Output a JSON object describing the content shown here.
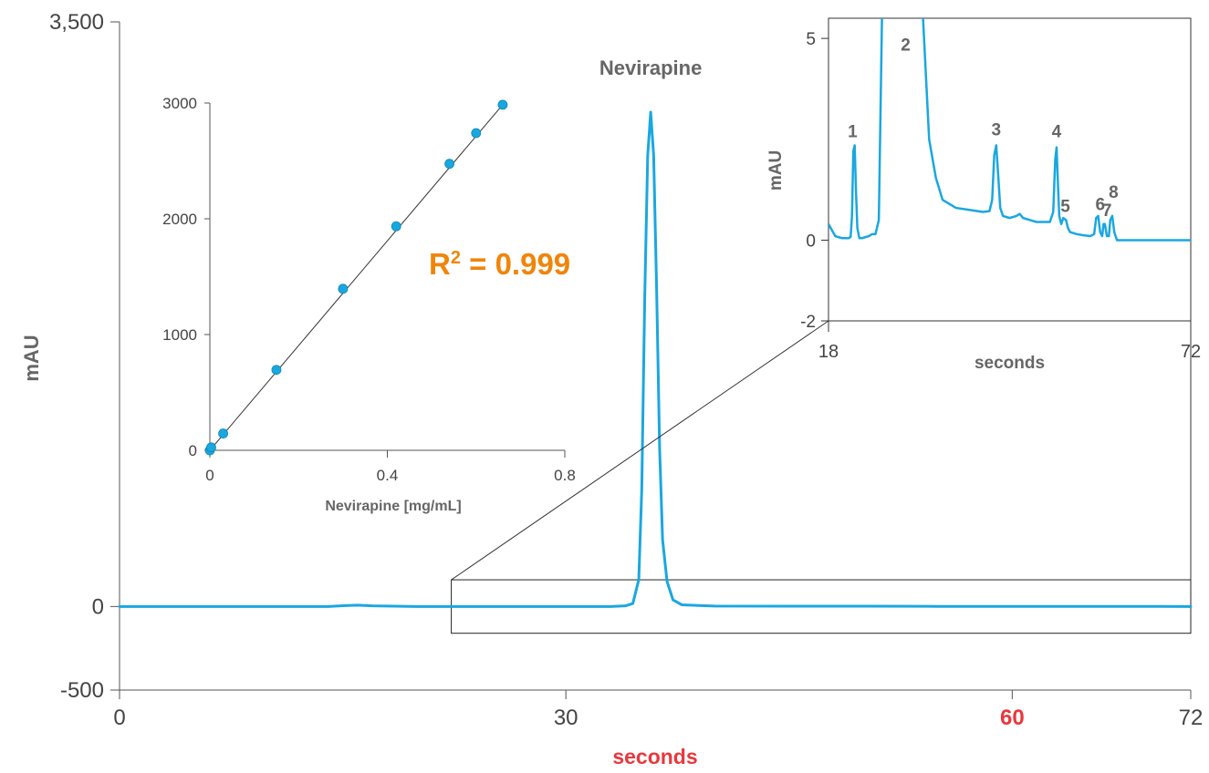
{
  "colors": {
    "trace": "#1aa7e0",
    "axis": "#555555",
    "accent_red": "#e8383d",
    "accent_orange": "#f0850a",
    "fit_line": "#333333",
    "label_gray": "#666666"
  },
  "chart_data": [
    {
      "type": "line",
      "id": "main",
      "xlabel": "seconds",
      "ylabel": "mAU",
      "xlim": [
        0,
        72
      ],
      "ylim": [
        -500,
        3500
      ],
      "xticks": [
        {
          "value": 0,
          "label": "0",
          "highlight": false
        },
        {
          "value": 30,
          "label": "30",
          "highlight": false
        },
        {
          "value": 60,
          "label": "60",
          "highlight": true
        },
        {
          "value": 72,
          "label": "72",
          "highlight": false
        }
      ],
      "yticks": [
        {
          "value": 3500,
          "label": "3,500"
        },
        {
          "value": 0,
          "label": "0"
        },
        {
          "value": -500,
          "label": "-500"
        }
      ],
      "peak_annotation": {
        "text": "Nevirapine",
        "x": 35.7,
        "y": 3020
      },
      "series": [
        {
          "x": [
            0,
            5,
            10,
            14,
            15,
            16,
            17,
            20,
            25,
            30,
            33,
            34,
            34.5,
            34.9,
            35.1,
            35.3,
            35.5,
            35.7,
            35.9,
            36.1,
            36.3,
            36.5,
            36.8,
            37.2,
            37.8,
            40,
            45,
            50,
            55,
            60,
            65,
            70,
            72
          ],
          "y": [
            0,
            0,
            0,
            0,
            5,
            8,
            4,
            0,
            0,
            0,
            0,
            4,
            18,
            160,
            700,
            1850,
            2700,
            2960,
            2700,
            1900,
            950,
            400,
            150,
            40,
            10,
            3,
            2,
            2,
            1,
            1,
            1,
            1,
            0
          ]
        }
      ],
      "zoom_box": {
        "x_range": [
          22.3,
          72
        ],
        "y_range": [
          -160,
          160
        ]
      }
    },
    {
      "type": "scatter",
      "id": "calibration",
      "xlabel": "Nevirapine [mg/mL]",
      "ylabel": "",
      "xlim": [
        0,
        0.8
      ],
      "ylim": [
        0,
        3000
      ],
      "xticks": [
        {
          "value": 0,
          "label": "0"
        },
        {
          "value": 0.4,
          "label": "0.4"
        },
        {
          "value": 0.8,
          "label": "0.8"
        }
      ],
      "yticks": [
        {
          "value": 0,
          "label": "0"
        },
        {
          "value": 1000,
          "label": "1000"
        },
        {
          "value": 2000,
          "label": "2000"
        },
        {
          "value": 3000,
          "label": "3000"
        }
      ],
      "points": {
        "x": [
          0,
          0.003,
          0.03,
          0.15,
          0.3,
          0.42,
          0.54,
          0.6,
          0.66
        ],
        "y": [
          0,
          25,
          145,
          695,
          1395,
          1935,
          2475,
          2740,
          2985
        ]
      },
      "fit_line": {
        "x": [
          0,
          0.66
        ],
        "y": [
          0,
          2985
        ]
      },
      "r2_prefix": "R",
      "r2_sup": "2",
      "r2_suffix": " = 0.999"
    },
    {
      "type": "line",
      "id": "zoom",
      "xlabel": "seconds",
      "ylabel": "mAU",
      "xlim": [
        18,
        72
      ],
      "ylim": [
        -2,
        5.5
      ],
      "xticks": [
        {
          "value": 18,
          "label": "18"
        },
        {
          "value": 72,
          "label": "72"
        }
      ],
      "yticks": [
        {
          "value": 5,
          "label": "5"
        },
        {
          "value": 0,
          "label": "0"
        },
        {
          "value": -2,
          "label": "-2"
        }
      ],
      "peak_labels": [
        {
          "text": "1",
          "x": 21.6,
          "y": 2.55
        },
        {
          "text": "2",
          "x": 29.5,
          "y": 4.7
        },
        {
          "text": "3",
          "x": 43.0,
          "y": 2.6
        },
        {
          "text": "4",
          "x": 52.0,
          "y": 2.55
        },
        {
          "text": "5",
          "x": 53.3,
          "y": 0.7
        },
        {
          "text": "6",
          "x": 58.5,
          "y": 0.75
        },
        {
          "text": "7",
          "x": 59.5,
          "y": 0.6
        },
        {
          "text": "8",
          "x": 60.5,
          "y": 1.05
        }
      ],
      "series": [
        {
          "x": [
            18,
            18.5,
            19,
            20,
            21,
            21.3,
            21.5,
            21.7,
            21.9,
            22.1,
            22.3,
            22.6,
            23,
            24,
            24.5,
            25,
            25.5,
            26,
            26.3,
            26.6,
            27,
            28,
            29,
            30,
            31,
            31.5,
            32,
            33,
            34,
            35,
            37,
            39,
            41,
            42,
            42.4,
            42.7,
            43.0,
            43.3,
            43.6,
            44,
            45,
            46,
            46.5,
            47,
            48,
            49,
            50,
            51,
            51.5,
            51.8,
            52.0,
            52.2,
            52.4,
            52.7,
            53.0,
            53.4,
            53.7,
            54,
            55,
            56,
            57,
            57.6,
            57.9,
            58.2,
            58.5,
            58.8,
            59.0,
            59.2,
            59.5,
            59.8,
            60.0,
            60.3,
            60.6,
            61,
            62,
            63,
            64,
            65,
            66,
            67,
            68,
            69,
            70,
            71,
            72
          ],
          "y": [
            0.4,
            0.25,
            0.1,
            0.05,
            0.05,
            0.08,
            0.6,
            2.2,
            2.35,
            1.2,
            0.3,
            0.05,
            0.05,
            0.1,
            0.15,
            0.15,
            0.5,
            5.8,
            5.8,
            5.8,
            5.8,
            5.8,
            5.8,
            5.8,
            5.8,
            5.8,
            5.8,
            2.5,
            1.55,
            1.0,
            0.8,
            0.75,
            0.7,
            0.72,
            1.0,
            2.1,
            2.35,
            1.6,
            0.8,
            0.6,
            0.55,
            0.6,
            0.65,
            0.55,
            0.5,
            0.45,
            0.45,
            0.45,
            0.7,
            2.0,
            2.3,
            1.4,
            0.6,
            0.4,
            0.55,
            0.5,
            0.3,
            0.2,
            0.15,
            0.12,
            0.1,
            0.15,
            0.55,
            0.6,
            0.2,
            0.1,
            0.4,
            0.4,
            0.1,
            0.1,
            0.5,
            0.6,
            0.2,
            0.0,
            0.0,
            0.0,
            0.0,
            0.0,
            0.0,
            0.0,
            0.0,
            0.0,
            0.0,
            0.0,
            0.0
          ]
        }
      ]
    }
  ]
}
